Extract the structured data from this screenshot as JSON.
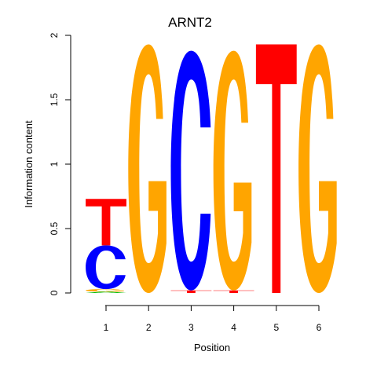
{
  "chart_data": {
    "type": "sequence_logo",
    "title": "ARNT2",
    "xlabel": "Position",
    "ylabel": "Information content",
    "ylim": [
      0,
      2
    ],
    "yticks": [
      "0",
      "0.5",
      "1",
      "1.5",
      "2"
    ],
    "positions": [
      "1",
      "2",
      "3",
      "4",
      "5",
      "6"
    ],
    "colors": {
      "A": "#00bb00",
      "C": "#0000ff",
      "G": "#ffa500",
      "T": "#ff0000"
    },
    "stacks": [
      [
        {
          "letter": "A",
          "height": 0.01
        },
        {
          "letter": "G",
          "height": 0.02
        },
        {
          "letter": "C",
          "height": 0.34
        },
        {
          "letter": "T",
          "height": 0.36
        }
      ],
      [
        {
          "letter": "G",
          "height": 1.93
        }
      ],
      [
        {
          "letter": "T",
          "height": 0.02
        },
        {
          "letter": "C",
          "height": 1.86
        }
      ],
      [
        {
          "letter": "T",
          "height": 0.02
        },
        {
          "letter": "G",
          "height": 1.86
        }
      ],
      [
        {
          "letter": "T",
          "height": 1.93
        }
      ],
      [
        {
          "letter": "G",
          "height": 1.93
        }
      ]
    ]
  }
}
